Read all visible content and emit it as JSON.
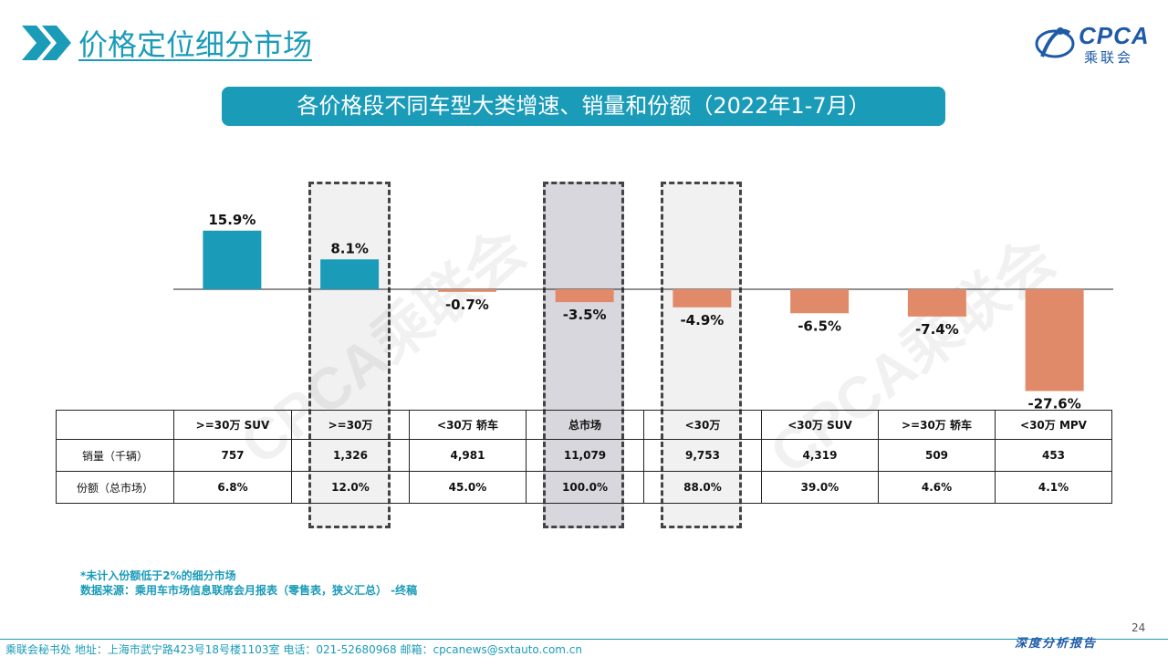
{
  "header": {
    "title": "价格定位细分市场",
    "logo_text": "CPCA",
    "logo_sub": "乘联会"
  },
  "banner": {
    "text": "各价格段不同车型大类增速、销量和份额（2022年1-7月）"
  },
  "chart_data": {
    "type": "bar",
    "categories": [
      ">=30万 SUV",
      ">=30万",
      "<30万 轿车",
      "总市场",
      "<30万",
      "<30万 SUV",
      ">=30万 轿车",
      "<30万 MPV"
    ],
    "values": [
      15.9,
      8.1,
      -0.7,
      -3.5,
      -4.9,
      -6.5,
      -7.4,
      -27.6
    ],
    "value_labels": [
      "15.9%",
      "8.1%",
      "-0.7%",
      "-3.5%",
      "-4.9%",
      "-6.5%",
      "-7.4%",
      "-27.6%"
    ],
    "ylim": [
      -28,
      18
    ],
    "colors": {
      "positive": "#1a9bb8",
      "negative": "#e08a6a"
    },
    "highlighted_categories": [
      ">=30万",
      "总市场",
      "<30万"
    ]
  },
  "table": {
    "headers": [
      "",
      ">=30万 SUV",
      ">=30万",
      "<30万 轿车",
      "总市场",
      "<30万",
      "<30万 SUV",
      ">=30万 轿车",
      "<30万 MPV"
    ],
    "rows": [
      [
        "销量（千辆）",
        "757",
        "1,326",
        "4,981",
        "11,079",
        "9,753",
        "4,319",
        "509",
        "453"
      ],
      [
        "份额（总市场）",
        "6.8%",
        "12.0%",
        "45.0%",
        "100.0%",
        "88.0%",
        "39.0%",
        "4.6%",
        "4.1%"
      ]
    ]
  },
  "watermark": "CPCA乘联会",
  "notes": {
    "line1": "*未计入份额低于2%的细分市场",
    "line2": "数据来源：乘用车市场信息联席会月报表（零售表，狭义汇总）  -终稿"
  },
  "footer": {
    "left": "乘联会秘书处   地址：上海市武宁路423号18号楼1103室    电话：021-52680968    邮箱：cpcanews@sxtauto.com.cn",
    "right": "深度分析报告",
    "page": "24"
  }
}
